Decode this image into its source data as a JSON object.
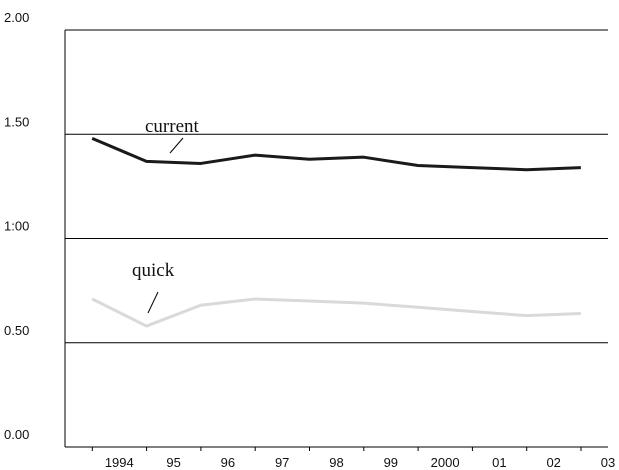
{
  "chart_data": {
    "type": "line",
    "x": [
      1993.5,
      1994.5,
      1995.5,
      1996.5,
      1997.5,
      1998.5,
      1999.5,
      2000.5,
      2001.5,
      2002.5
    ],
    "series": [
      {
        "name": "current",
        "color": "#1a1a1a",
        "values": [
          1.48,
          1.37,
          1.36,
          1.4,
          1.38,
          1.39,
          1.35,
          1.34,
          1.33,
          1.34
        ]
      },
      {
        "name": "quick",
        "color": "#d9d9d9",
        "values": [
          0.71,
          0.58,
          0.68,
          0.71,
          0.7,
          0.69,
          0.67,
          0.65,
          0.63,
          0.64
        ]
      }
    ],
    "xlim": [
      1993,
      2003
    ],
    "xticks": [
      1994,
      {
        "value": 1995,
        "label": "95"
      },
      {
        "value": 1996,
        "label": "96"
      },
      {
        "value": 1997,
        "label": "97"
      },
      {
        "value": 1998,
        "label": "98"
      },
      {
        "value": 1999,
        "label": "99"
      },
      2000,
      {
        "value": 2001,
        "label": "01"
      },
      {
        "value": 2002,
        "label": "02"
      },
      {
        "value": 2003,
        "label": "03"
      }
    ],
    "ylim": [
      0,
      2
    ],
    "yticks": [
      {
        "value": 0,
        "label": "0.00"
      },
      {
        "value": 0.5,
        "label": "0.50"
      },
      {
        "value": 1,
        "label": "1:00"
      },
      {
        "value": 1.5,
        "label": "1.50"
      },
      {
        "value": 2,
        "label": "2.00"
      }
    ],
    "grid": true
  }
}
